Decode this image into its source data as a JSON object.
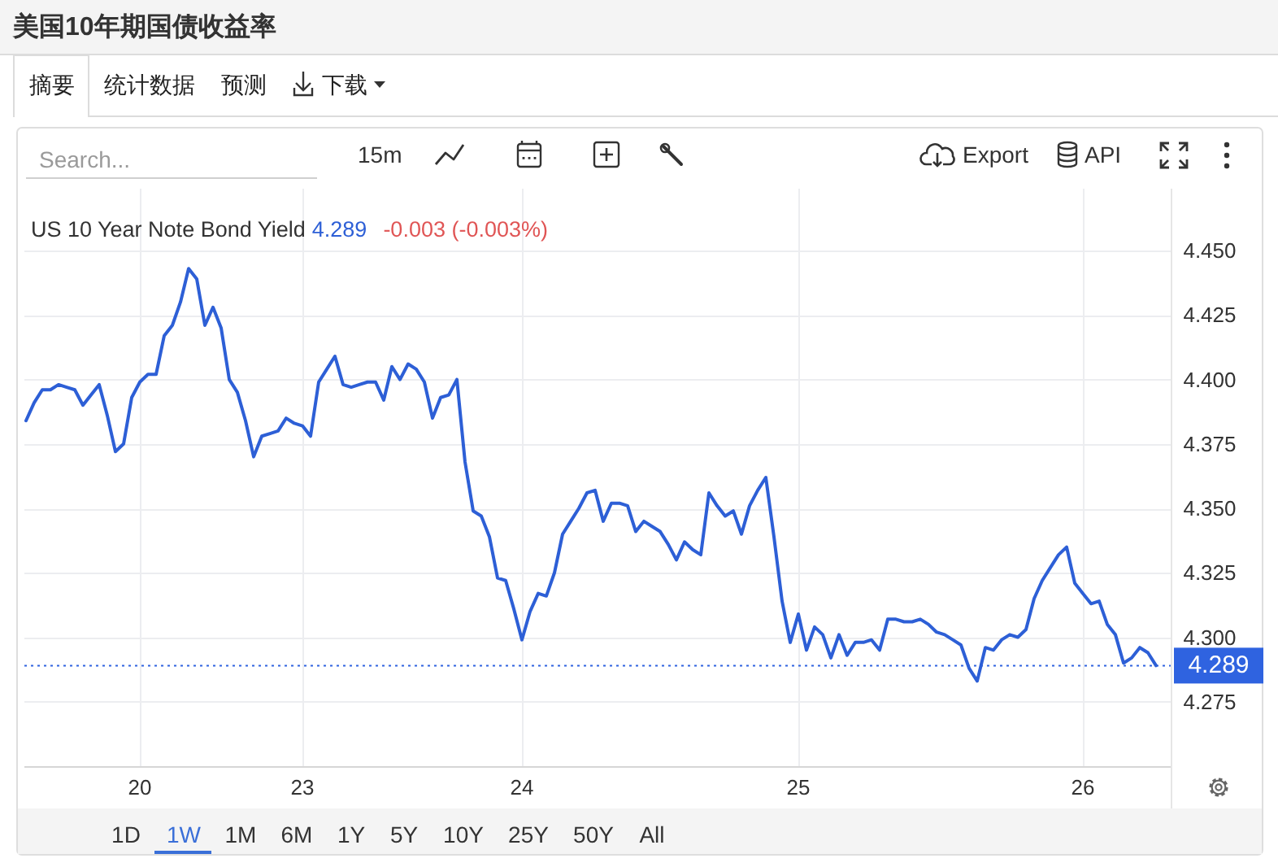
{
  "chart_data": {
    "type": "line",
    "title": "美国10年期国债收益率",
    "categories": [
      null,
      null,
      null,
      null,
      null,
      null,
      null,
      null,
      null,
      null,
      null,
      null,
      null,
      null,
      "20",
      null,
      null,
      null,
      null,
      null,
      null,
      null,
      null,
      null,
      null,
      null,
      null,
      null,
      null,
      null,
      null,
      null,
      null,
      null,
      "23",
      null,
      null,
      null,
      null,
      null,
      null,
      null,
      null,
      null,
      null,
      null,
      null,
      null,
      null,
      null,
      null,
      null,
      null,
      null,
      null,
      null,
      null,
      null,
      null,
      null,
      null,
      "24",
      null,
      null,
      null,
      null,
      null,
      null,
      null,
      null,
      null,
      null,
      null,
      null,
      null,
      null,
      null,
      null,
      null,
      null,
      null,
      null,
      null,
      null,
      null,
      null,
      null,
      null,
      null,
      null,
      null,
      null,
      null,
      null,
      null,
      "25",
      null,
      null,
      null,
      null,
      null,
      null,
      null,
      null,
      null,
      null,
      null,
      null,
      null,
      null,
      null,
      null,
      null,
      null,
      null,
      null,
      null,
      null,
      null,
      null,
      null,
      null,
      null,
      null,
      null,
      null,
      null,
      null,
      null,
      null,
      "26",
      null,
      null,
      null,
      null,
      null,
      null,
      null,
      null,
      null
    ],
    "series": [
      {
        "name": "US 10 Year Note Bond Yield",
        "color": "#2d5fd6",
        "values": [
          4.384,
          4.391,
          4.396,
          4.396,
          4.398,
          4.397,
          4.396,
          4.39,
          4.394,
          4.398,
          4.386,
          4.372,
          4.375,
          4.393,
          4.399,
          4.402,
          4.402,
          4.417,
          4.421,
          4.43,
          4.443,
          4.439,
          4.421,
          4.428,
          4.42,
          4.4,
          4.395,
          4.384,
          4.37,
          4.378,
          4.379,
          4.38,
          4.385,
          4.383,
          4.382,
          4.378,
          4.399,
          4.404,
          4.409,
          4.398,
          4.397,
          4.398,
          4.399,
          4.399,
          4.392,
          4.405,
          4.4,
          4.406,
          4.404,
          4.399,
          4.385,
          4.393,
          4.394,
          4.4,
          4.368,
          4.349,
          4.347,
          4.339,
          4.323,
          4.322,
          4.311,
          4.299,
          4.31,
          4.317,
          4.316,
          4.325,
          4.34,
          4.345,
          4.35,
          4.356,
          4.357,
          4.345,
          4.352,
          4.352,
          4.351,
          4.341,
          4.345,
          4.343,
          4.341,
          4.336,
          4.33,
          4.337,
          4.334,
          4.332,
          4.356,
          4.351,
          4.347,
          4.349,
          4.34,
          4.351,
          4.357,
          4.362,
          4.339,
          4.314,
          4.298,
          4.309,
          4.295,
          4.304,
          4.301,
          4.292,
          4.301,
          4.293,
          4.298,
          4.298,
          4.299,
          4.295,
          4.307,
          4.307,
          4.306,
          4.306,
          4.307,
          4.305,
          4.302,
          4.301,
          4.299,
          4.297,
          4.288,
          4.283,
          4.296,
          4.295,
          4.299,
          4.301,
          4.3,
          4.303,
          4.315,
          4.322,
          4.327,
          4.332,
          4.335,
          4.321,
          4.317,
          4.313,
          4.314,
          4.305,
          4.301,
          4.29,
          4.292,
          4.296,
          4.294,
          4.289
        ]
      }
    ],
    "ylim": [
      4.25,
      4.474
    ],
    "yticks": [
      4.275,
      {
        "value": 4.3,
        "label": "4.300"
      },
      4.325,
      {
        "value": 4.35,
        "label": "4.350"
      },
      4.375,
      {
        "value": 4.4,
        "label": "4.400"
      },
      4.425,
      {
        "value": 4.45,
        "label": "4.450"
      }
    ],
    "grid": true,
    "legend": "top left",
    "ref_lines": [
      {
        "axis": "y",
        "value": 4.289,
        "label": "4.289",
        "color": "#2f63e0",
        "line_style": "dotted"
      }
    ],
    "annotations": [
      "摘要",
      "统计数据",
      "预测",
      "下载",
      "Search...",
      "15m",
      "Export",
      "API",
      "4.289",
      "-0.003 (-0.003%)",
      "1D",
      "1W",
      "1M",
      "6M",
      "1Y",
      "5Y",
      "10Y",
      "25Y",
      "50Y",
      "All"
    ]
  }
}
